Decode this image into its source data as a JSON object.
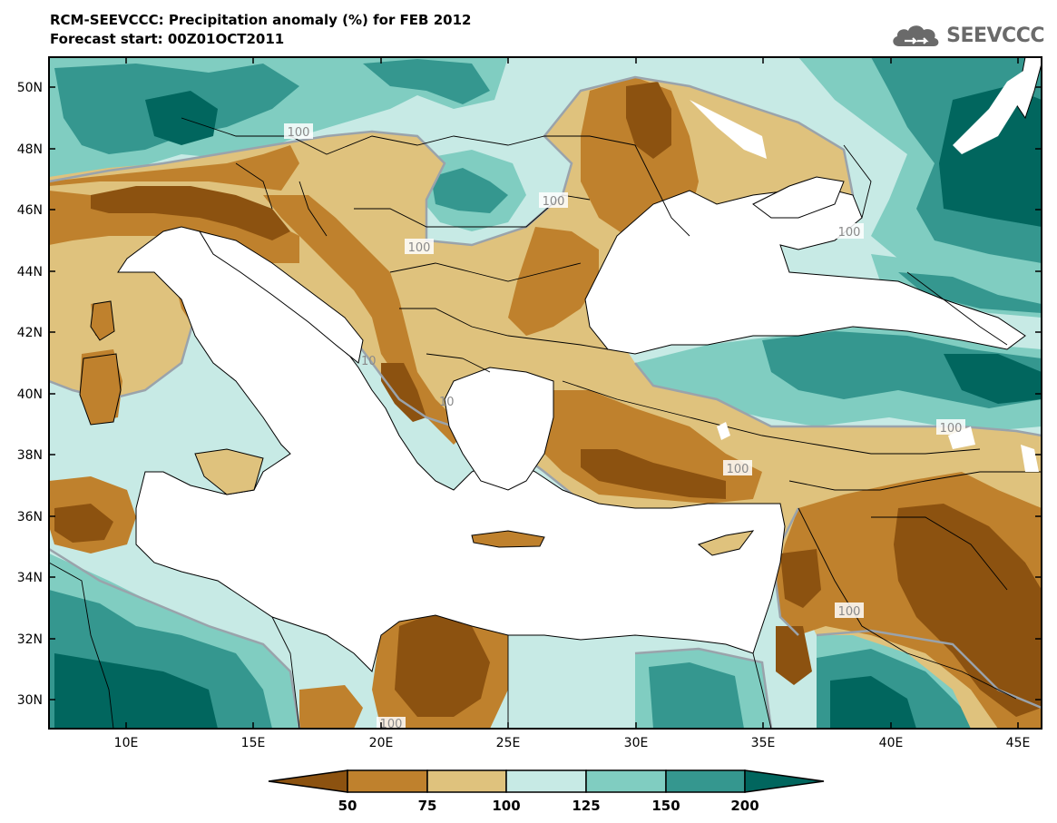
{
  "header": {
    "title_line1": "RCM-SEEVCCC: Precipitation anomaly (%) for FEB 2012",
    "title_line2": "Forecast start: 00Z01OCT2011"
  },
  "logo": {
    "text": "SEEVCCC",
    "icon": "cloud-icon"
  },
  "map": {
    "lat_labels": [
      "50N",
      "48N",
      "46N",
      "44N",
      "42N",
      "40N",
      "38N",
      "36N",
      "34N",
      "32N",
      "30N"
    ],
    "lon_labels": [
      "10E",
      "15E",
      "20E",
      "25E",
      "30E",
      "35E",
      "40E",
      "45E"
    ],
    "contour_labels": [
      "100",
      "100",
      "100",
      "100",
      "100",
      "100",
      "100",
      "100",
      "100",
      "100",
      "10",
      "10"
    ]
  },
  "legend": {
    "labels": [
      "50",
      "75",
      "100",
      "125",
      "150",
      "200"
    ],
    "colors": {
      "below_50": "#8c5210",
      "50_75": "#bf812d",
      "75_100": "#dfc27d",
      "100_125": "#c7eae5",
      "125_150": "#80cdc1",
      "150_200": "#35978f",
      "above_200": "#01665e"
    }
  }
}
